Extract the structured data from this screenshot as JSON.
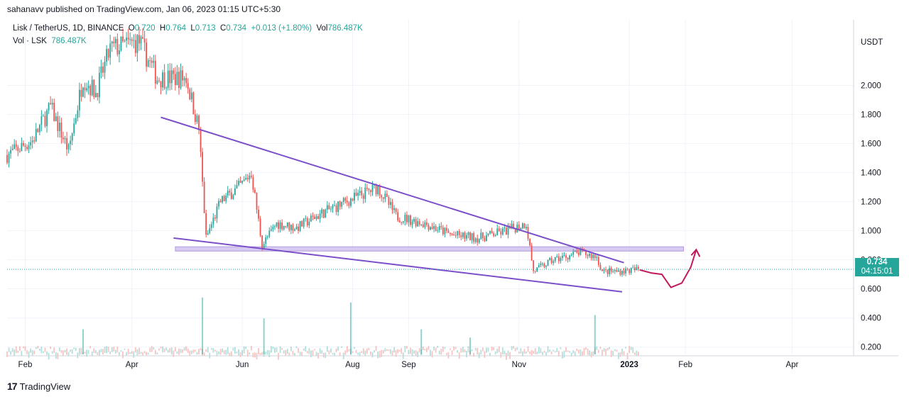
{
  "header": {
    "published": "sahanavv published on TradingView.com, Jan 06, 2023 01:15 UTC+5:30"
  },
  "legend": {
    "symbol": "Lisk / TetherUS, 1D, BINANCE",
    "o_label": "O",
    "o_value": "0.720",
    "h_label": "H",
    "h_value": "0.764",
    "l_label": "L",
    "l_value": "0.713",
    "c_label": "C",
    "c_value": "0.734",
    "change": "+0.013 (+1.80%)",
    "vol_label": "Vol",
    "vol_value": "786.487K",
    "vol2_label": "Vol · LSK",
    "vol2_value": "786.487K"
  },
  "price_tag": {
    "price": "0.734",
    "countdown": "04:15:01"
  },
  "colors": {
    "up": "#26a69a",
    "down": "#ef5350",
    "trendline": "#7b4fc9",
    "zone": "#c9b8ee",
    "arrow": "#c2185b"
  },
  "footer": {
    "brand": "TradingView",
    "logo": "17"
  },
  "chart_data": {
    "type": "candlestick",
    "currency_label": "USDT",
    "ylim": [
      0.15,
      2.45
    ],
    "y_ticks": [
      "2.000",
      "1.800",
      "1.600",
      "1.400",
      "1.200",
      "1.000",
      "0.800",
      "0.600",
      "0.400",
      "0.200"
    ],
    "x_ticks": [
      "Feb",
      "Apr",
      "Jun",
      "Aug",
      "Sep",
      "Nov",
      "2023",
      "Feb",
      "Apr"
    ],
    "price_path": [
      [
        "2022-01-22",
        1.52
      ],
      [
        "2022-02-05",
        1.62
      ],
      [
        "2022-02-15",
        1.85
      ],
      [
        "2022-02-25",
        1.55
      ],
      [
        "2022-03-05",
        2.05
      ],
      [
        "2022-03-12",
        1.95
      ],
      [
        "2022-03-20",
        2.25
      ],
      [
        "2022-04-05",
        2.3
      ],
      [
        "2022-04-15",
        2.05
      ],
      [
        "2022-05-01",
        2.05
      ],
      [
        "2022-05-08",
        1.7
      ],
      [
        "2022-05-12",
        0.95
      ],
      [
        "2022-05-20",
        1.2
      ],
      [
        "2022-06-01",
        1.32
      ],
      [
        "2022-06-06",
        1.4
      ],
      [
        "2022-06-12",
        0.9
      ],
      [
        "2022-06-20",
        1.05
      ],
      [
        "2022-07-01",
        1.02
      ],
      [
        "2022-07-15",
        1.12
      ],
      [
        "2022-08-01",
        1.22
      ],
      [
        "2022-08-15",
        1.3
      ],
      [
        "2022-08-25",
        1.1
      ],
      [
        "2022-09-10",
        1.05
      ],
      [
        "2022-09-25",
        0.97
      ],
      [
        "2022-10-10",
        0.95
      ],
      [
        "2022-10-25",
        1.0
      ],
      [
        "2022-11-05",
        1.05
      ],
      [
        "2022-11-09",
        0.72
      ],
      [
        "2022-11-20",
        0.8
      ],
      [
        "2022-12-05",
        0.85
      ],
      [
        "2022-12-14",
        0.82
      ],
      [
        "2022-12-17",
        0.72
      ],
      [
        "2022-12-25",
        0.72
      ],
      [
        "2023-01-06",
        0.734
      ]
    ],
    "volume_spikes": [
      [
        "2022-05-10",
        0.68
      ],
      [
        "2022-06-13",
        0.43
      ],
      [
        "2022-07-31",
        0.62
      ],
      [
        "2022-09-08",
        0.3
      ],
      [
        "2022-12-13",
        0.47
      ],
      [
        "2022-03-05",
        0.3
      ],
      [
        "2022-10-05",
        0.2
      ]
    ],
    "annotations": {
      "upper_trendline": [
        [
          "2022-04-17",
          1.78
        ],
        [
          "2022-12-29",
          0.78
        ]
      ],
      "lower_trendline": [
        [
          "2022-04-24",
          0.95
        ],
        [
          "2022-12-28",
          0.58
        ]
      ],
      "support_zone": {
        "from": "2022-04-25",
        "to": "2023-01-31",
        "low": 0.86,
        "high": 0.89
      },
      "projection_path": [
        [
          "2023-01-07",
          0.73
        ],
        [
          "2023-01-13",
          0.71
        ],
        [
          "2023-01-19",
          0.7
        ],
        [
          "2023-01-24",
          0.61
        ],
        [
          "2023-01-30",
          0.64
        ],
        [
          "2023-02-04",
          0.75
        ],
        [
          "2023-02-07",
          0.87
        ]
      ]
    }
  }
}
